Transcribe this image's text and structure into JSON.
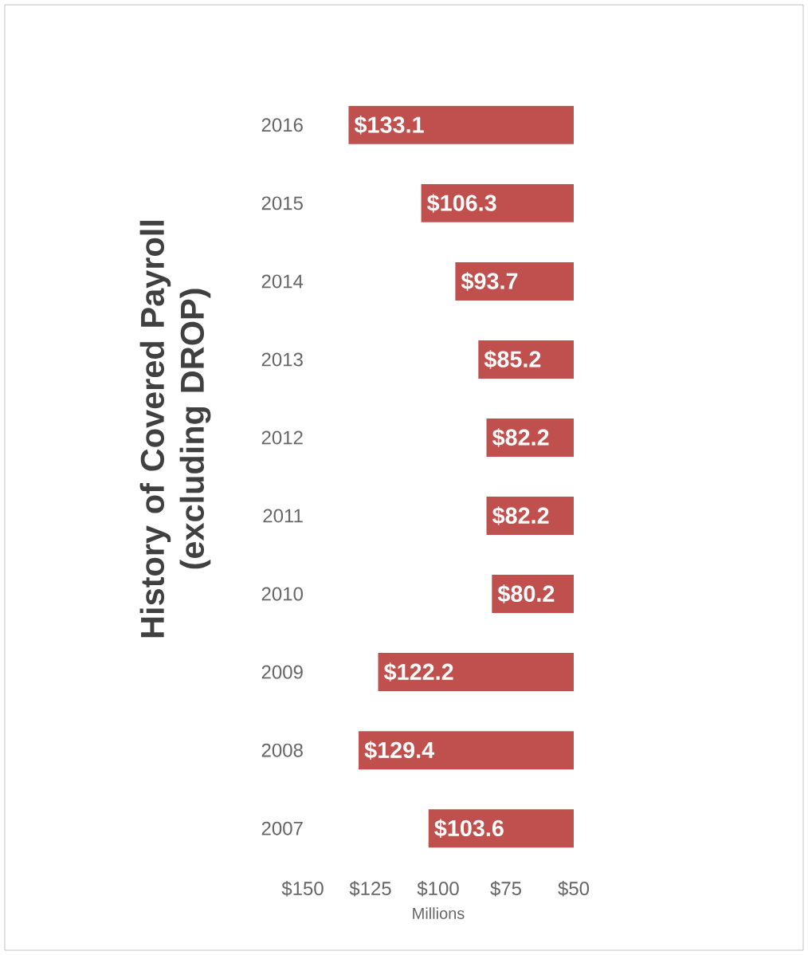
{
  "chart_data": {
    "type": "bar",
    "orientation": "horizontal",
    "title": "History of Covered Payroll\n(excluding DROP)",
    "xlabel": "Millions",
    "categories": [
      "2016",
      "2015",
      "2014",
      "2013",
      "2012",
      "2011",
      "2010",
      "2009",
      "2008",
      "2007"
    ],
    "values": [
      133.1,
      106.3,
      93.7,
      85.2,
      82.2,
      82.2,
      80.2,
      122.2,
      129.4,
      103.6
    ],
    "value_labels": [
      "$133.1",
      "$106.3",
      "$93.7",
      "$85.2",
      "$82.2",
      "$82.2",
      "$80.2",
      "$122.2",
      "$129.4",
      "$103.6"
    ],
    "color": "#c0504d",
    "xlim": [
      150,
      50
    ],
    "xticks": [
      {
        "value": 150,
        "label": "$150"
      },
      {
        "value": 125,
        "label": "$125"
      },
      {
        "value": 100,
        "label": "$100"
      },
      {
        "value": 75,
        "label": "$75"
      },
      {
        "value": 50,
        "label": "$50"
      }
    ],
    "grid": false
  }
}
